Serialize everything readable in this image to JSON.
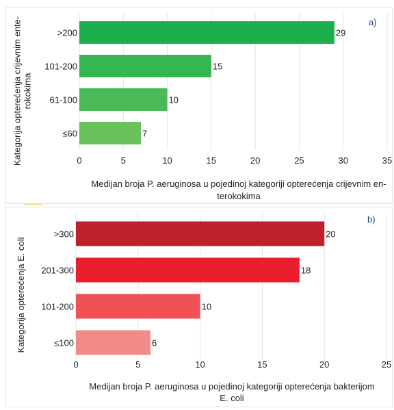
{
  "chart_data": [
    {
      "type": "bar",
      "orientation": "horizontal",
      "panel_label": "a)",
      "categories": [
        ">200",
        "101-200",
        "61-100",
        "≤60"
      ],
      "values": [
        29,
        15,
        10,
        7
      ],
      "colors": [
        "#1daf4e",
        "#36b650",
        "#4aba58",
        "#6bc15c"
      ],
      "xlim": [
        0,
        35
      ],
      "xticks": [
        "0",
        "5",
        "10",
        "15",
        "20",
        "25",
        "30",
        "35"
      ],
      "xlabel": [
        "Medijan broja P. aeruginosa u pojedinoj kategoriji opterećenja crijevnim en-",
        "terokokima"
      ],
      "ylabel": [
        "Kategorija opterećenja crijevnim ente-",
        "rokokima"
      ],
      "grid": true
    },
    {
      "type": "bar",
      "orientation": "horizontal",
      "panel_label": "b)",
      "categories": [
        ">300",
        "201-300",
        "101-200",
        "≤100"
      ],
      "values": [
        20,
        18,
        10,
        6
      ],
      "colors": [
        "#c0202b",
        "#ea1e2d",
        "#ef5155",
        "#f28a88"
      ],
      "xlim": [
        0,
        25
      ],
      "xticks": [
        "0",
        "5",
        "10",
        "15",
        "20",
        "25"
      ],
      "xlabel": [
        "Medijan broja P. aeruginosa u pojedinoj kategoriji opterećenja bakterijom",
        "E. coli"
      ],
      "ylabel": [
        "Kategorija opterećenja E. coli"
      ],
      "grid": true
    }
  ]
}
